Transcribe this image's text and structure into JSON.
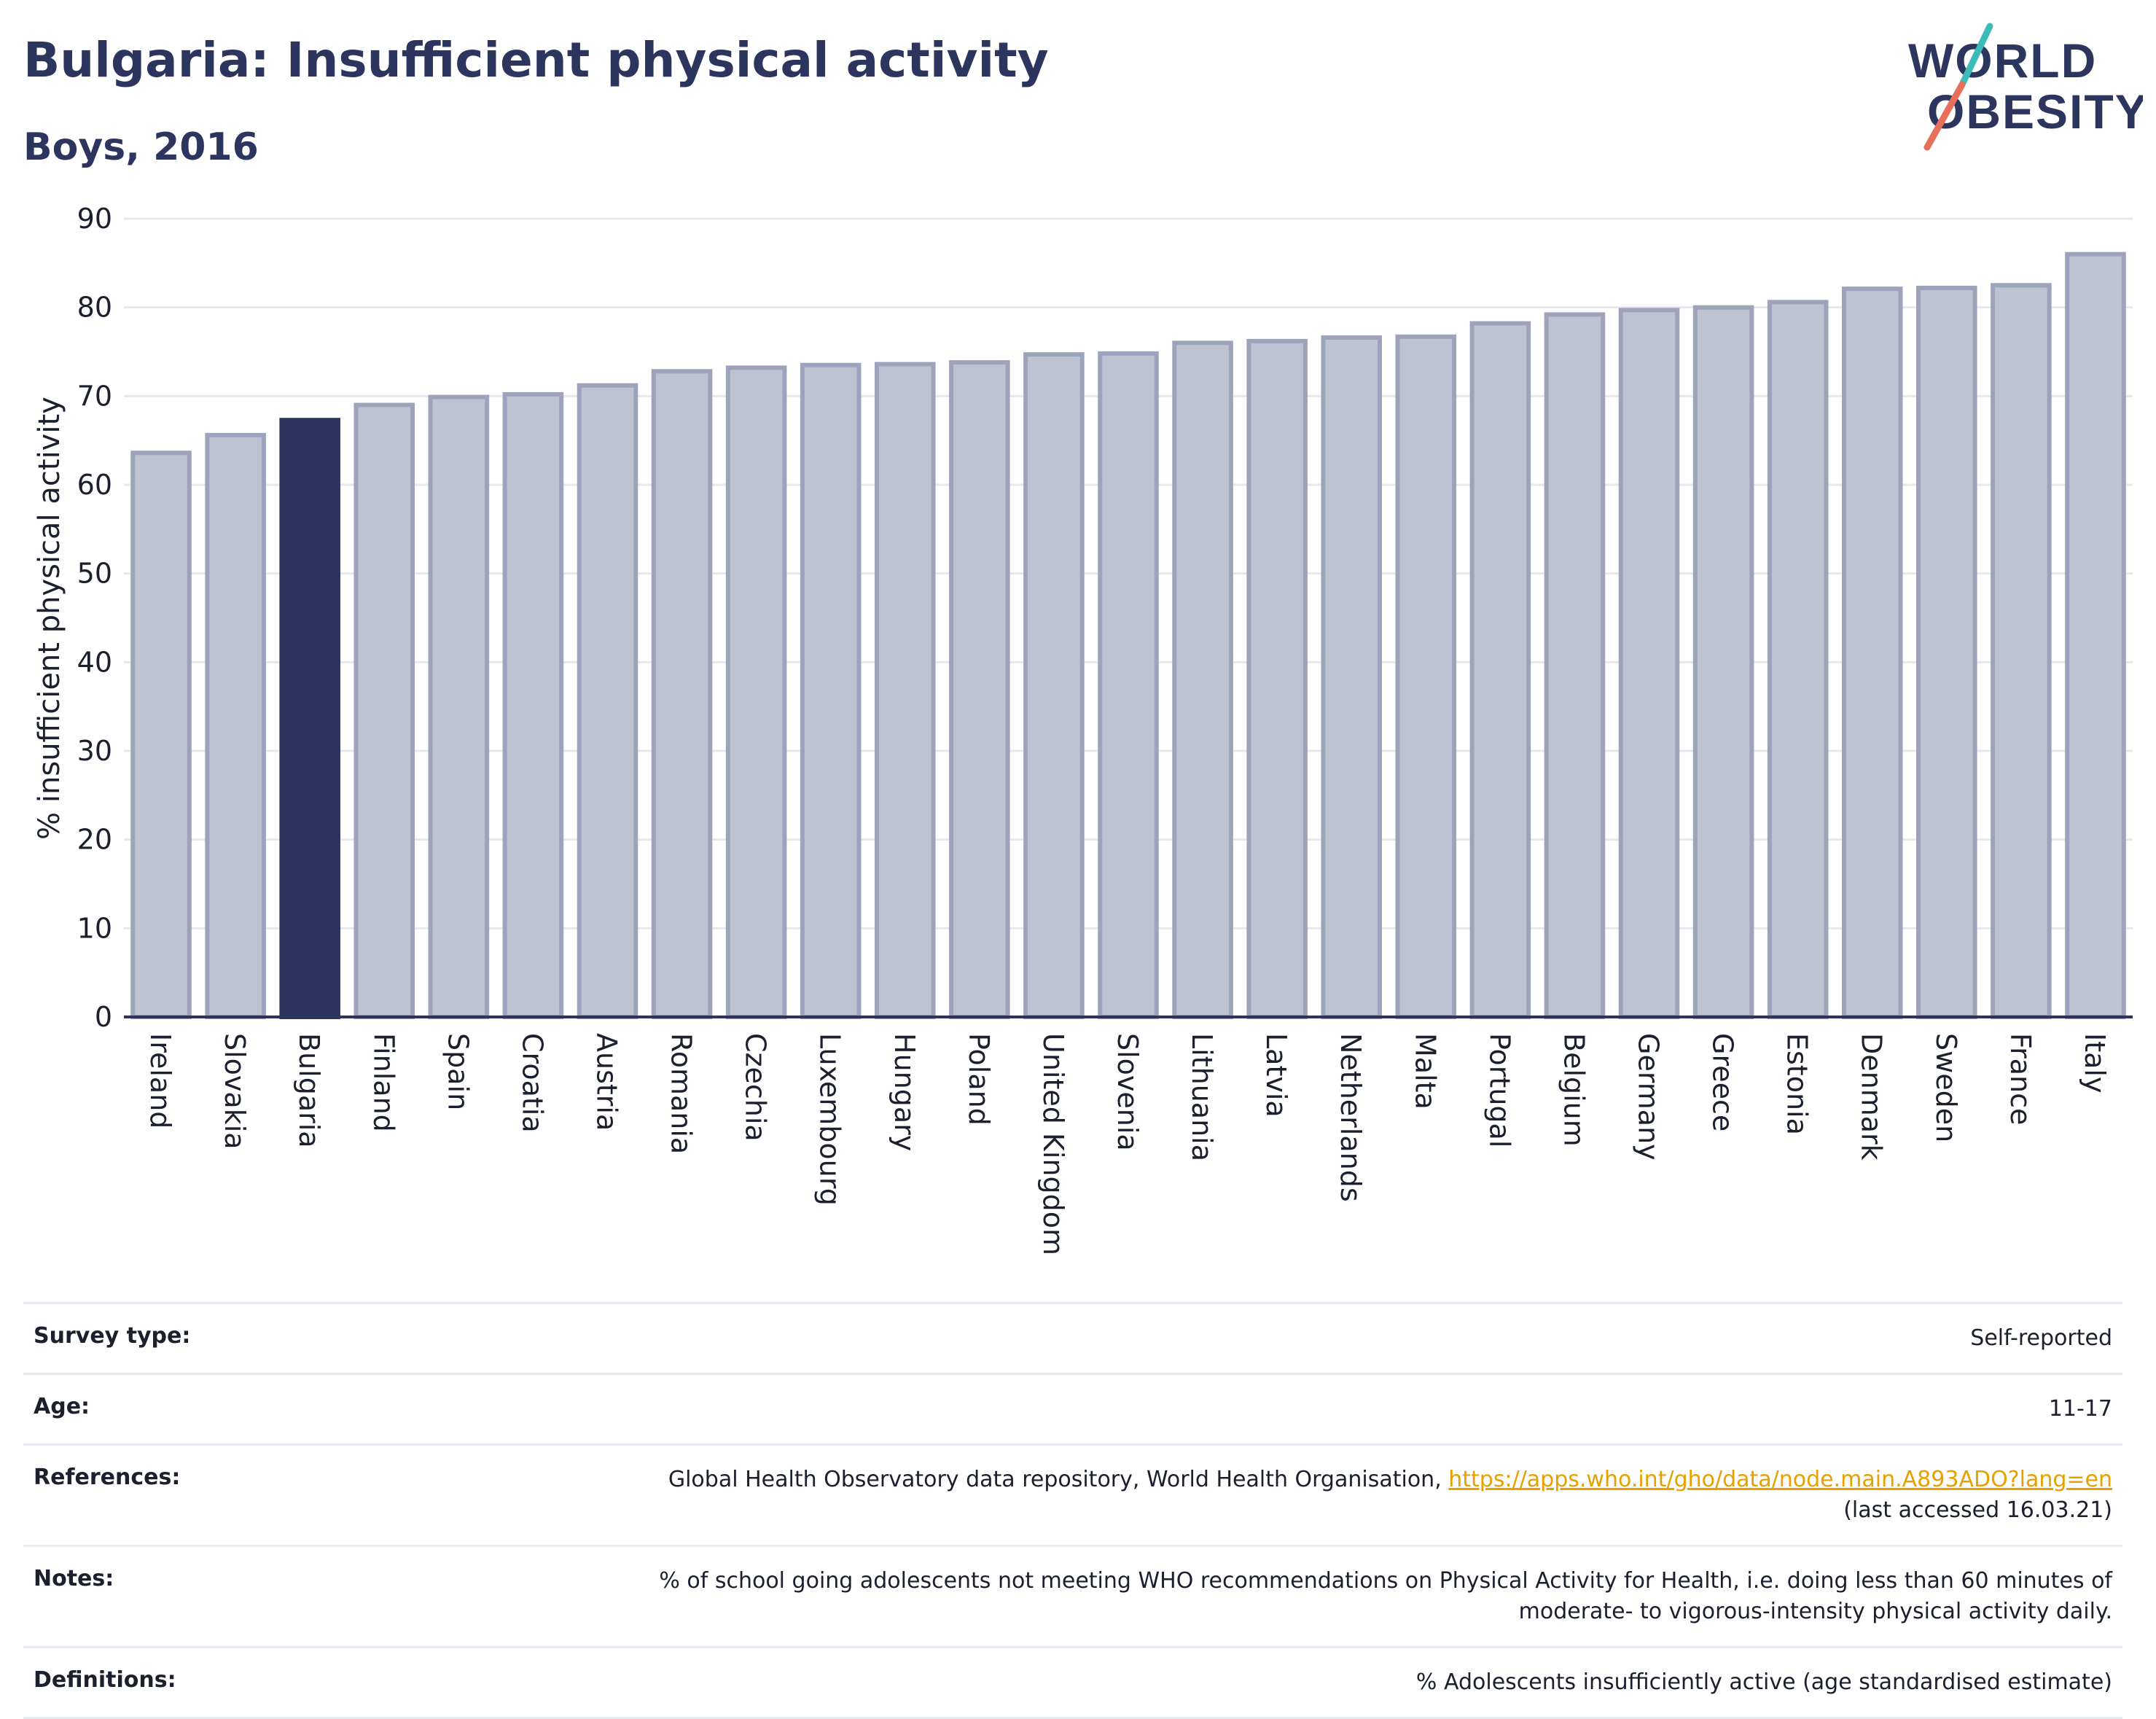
{
  "header": {
    "title": "Bulgaria: Insufficient physical activity",
    "subtitle": "Boys, 2016"
  },
  "logo": {
    "line1": "WORLD",
    "line2": "OBESITY"
  },
  "chart_data": {
    "type": "bar",
    "ylabel": "% insufficient physical activity",
    "ylim": [
      0,
      90
    ],
    "yticks": [
      0,
      10,
      20,
      30,
      40,
      50,
      60,
      70,
      80,
      90
    ],
    "grid": true,
    "categories": [
      "Ireland",
      "Slovakia",
      "Bulgaria",
      "Finland",
      "Spain",
      "Croatia",
      "Austria",
      "Romania",
      "Czechia",
      "Luxembourg",
      "Hungary",
      "Poland",
      "United Kingdom",
      "Slovenia",
      "Lithuania",
      "Latvia",
      "Netherlands",
      "Malta",
      "Portugal",
      "Belgium",
      "Germany",
      "Greece",
      "Estonia",
      "Denmark",
      "Sweden",
      "France",
      "Italy"
    ],
    "values": [
      63.6,
      65.6,
      67.3,
      69.0,
      69.9,
      70.2,
      71.2,
      72.8,
      73.2,
      73.5,
      73.6,
      73.8,
      74.7,
      74.8,
      76.0,
      76.2,
      76.6,
      76.7,
      78.2,
      79.2,
      79.7,
      80.0,
      80.6,
      82.1,
      82.2,
      82.5,
      86.0
    ],
    "highlight": "Bulgaria",
    "colors": {
      "bar": "#bfc3d1",
      "bar_border": "#9da3ba",
      "highlight": "#2b355e",
      "grid": "#e6e8ee",
      "axis": "#2b355e"
    }
  },
  "info": {
    "survey_type": {
      "label": "Survey type:",
      "value": "Self-reported"
    },
    "age": {
      "label": "Age:",
      "value": "11-17"
    },
    "references": {
      "label": "References:",
      "text": "Global Health Observatory data repository, World Health Organisation, ",
      "link": "https://apps.who.int/gho/data/node.main.A893ADO?lang=en",
      "accessed": "(last accessed 16.03.21)"
    },
    "notes": {
      "label": "Notes:",
      "line1": "% of school going adolescents not meeting WHO recommendations on Physical Activity for Health, i.e. doing less than 60 minutes of",
      "line2": "moderate- to vigorous-intensity physical activity daily."
    },
    "definitions": {
      "label": "Definitions:",
      "value": "% Adolescents insufficiently active (age standardised estimate)"
    }
  }
}
